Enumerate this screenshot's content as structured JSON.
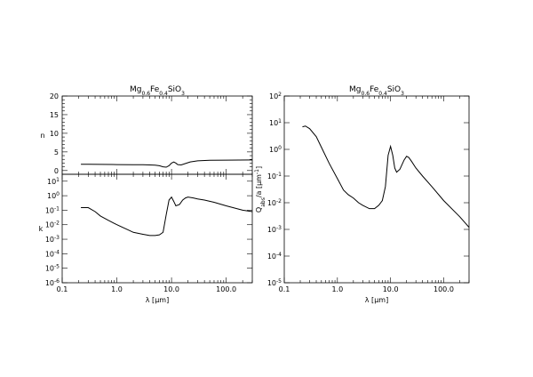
{
  "chart_data": [
    {
      "type": "line",
      "panel": "n",
      "title_parts": [
        "Mg",
        "0.6",
        "Fe",
        "0.4",
        "SiO",
        "3"
      ],
      "xlabel": "",
      "ylabel": "n",
      "xscale": "log",
      "xlim": [
        0.1,
        300
      ],
      "ylim": [
        -1,
        20
      ],
      "yticks": [
        "0",
        "5",
        "10",
        "15",
        "20"
      ],
      "series": [
        {
          "x": [
            0.22,
            0.3,
            0.5,
            1.0,
            2.0,
            3.0,
            4.0,
            5.0,
            6.0,
            7.0,
            8.0,
            9.0,
            10.0,
            11.0,
            12.0,
            13.0,
            15.0,
            18.0,
            22.0,
            30.0,
            50.0,
            100.0,
            300.0
          ],
          "y": [
            1.7,
            1.7,
            1.65,
            1.6,
            1.55,
            1.55,
            1.5,
            1.45,
            1.3,
            1.0,
            0.9,
            1.3,
            2.0,
            2.3,
            2.0,
            1.6,
            1.5,
            1.9,
            2.3,
            2.6,
            2.75,
            2.8,
            2.85
          ]
        }
      ]
    },
    {
      "type": "line",
      "panel": "k",
      "xlabel_parts": [
        "λ [",
        "μ",
        "m]"
      ],
      "ylabel": "k",
      "xscale": "log",
      "yscale": "log",
      "xlim": [
        0.1,
        300
      ],
      "ylim": [
        1e-06,
        30
      ],
      "xticks": [
        "0.1",
        "1.0",
        "10.0",
        "100.0"
      ],
      "yticks": [
        {
          "base": "10",
          "exp": "1",
          "v": 10
        },
        {
          "base": "10",
          "exp": "0",
          "v": 1
        },
        {
          "base": "10",
          "exp": "-1",
          "v": 0.1
        },
        {
          "base": "10",
          "exp": "-2",
          "v": 0.01
        },
        {
          "base": "10",
          "exp": "-3",
          "v": 0.001
        },
        {
          "base": "10",
          "exp": "-4",
          "v": 0.0001
        },
        {
          "base": "10",
          "exp": "-5",
          "v": 1e-05
        },
        {
          "base": "10",
          "exp": "-6",
          "v": 1e-06
        }
      ],
      "series": [
        {
          "x": [
            0.22,
            0.25,
            0.3,
            0.4,
            0.5,
            0.7,
            1.0,
            1.5,
            2.0,
            3.0,
            4.0,
            5.0,
            6.0,
            7.0,
            8.0,
            9.0,
            10.0,
            11.0,
            12.0,
            14.0,
            16.0,
            18.0,
            20.0,
            25.0,
            30.0,
            40.0,
            60.0,
            100.0,
            200.0,
            300.0
          ],
          "y": [
            0.15,
            0.15,
            0.15,
            0.08,
            0.04,
            0.02,
            0.01,
            0.005,
            0.003,
            0.0022,
            0.0018,
            0.0018,
            0.002,
            0.003,
            0.05,
            0.5,
            0.8,
            0.4,
            0.2,
            0.25,
            0.5,
            0.7,
            0.8,
            0.7,
            0.6,
            0.5,
            0.35,
            0.2,
            0.1,
            0.08
          ]
        }
      ]
    },
    {
      "type": "line",
      "panel": "Qabs",
      "title_parts": [
        "Mg",
        "0.6",
        "Fe",
        "0.4",
        "SiO",
        "3"
      ],
      "xlabel_parts": [
        "λ [",
        "μ",
        "m]"
      ],
      "ylabel_parts": [
        "Q",
        "abs",
        "/a [",
        "μ",
        "m",
        "-1",
        "]"
      ],
      "xscale": "log",
      "yscale": "log",
      "xlim": [
        0.1,
        300
      ],
      "ylim": [
        1e-05,
        100
      ],
      "xticks": [
        "0.1",
        "1.0",
        "10.0",
        "100.0"
      ],
      "yticks": [
        {
          "base": "10",
          "exp": "2",
          "v": 100
        },
        {
          "base": "10",
          "exp": "1",
          "v": 10
        },
        {
          "base": "10",
          "exp": "0",
          "v": 1
        },
        {
          "base": "10",
          "exp": "-1",
          "v": 0.1
        },
        {
          "base": "10",
          "exp": "-2",
          "v": 0.01
        },
        {
          "base": "10",
          "exp": "-3",
          "v": 0.001
        },
        {
          "base": "10",
          "exp": "-4",
          "v": 0.0001
        },
        {
          "base": "10",
          "exp": "-5",
          "v": 1e-05
        }
      ],
      "series": [
        {
          "x": [
            0.22,
            0.25,
            0.3,
            0.4,
            0.5,
            0.7,
            1.0,
            1.3,
            1.6,
            2.0,
            2.5,
            3.0,
            4.0,
            5.0,
            6.0,
            7.0,
            8.0,
            9.0,
            10.0,
            11.0,
            12.0,
            13.0,
            15.0,
            18.0,
            20.0,
            22.0,
            25.0,
            30.0,
            40.0,
            60.0,
            100.0,
            200.0,
            300.0
          ],
          "y": [
            7.0,
            7.5,
            6.0,
            3.0,
            1.2,
            0.3,
            0.08,
            0.03,
            0.02,
            0.015,
            0.01,
            0.008,
            0.006,
            0.006,
            0.008,
            0.012,
            0.04,
            0.6,
            1.3,
            0.6,
            0.2,
            0.14,
            0.18,
            0.4,
            0.55,
            0.5,
            0.35,
            0.2,
            0.1,
            0.04,
            0.012,
            0.003,
            0.0012
          ]
        }
      ]
    }
  ]
}
